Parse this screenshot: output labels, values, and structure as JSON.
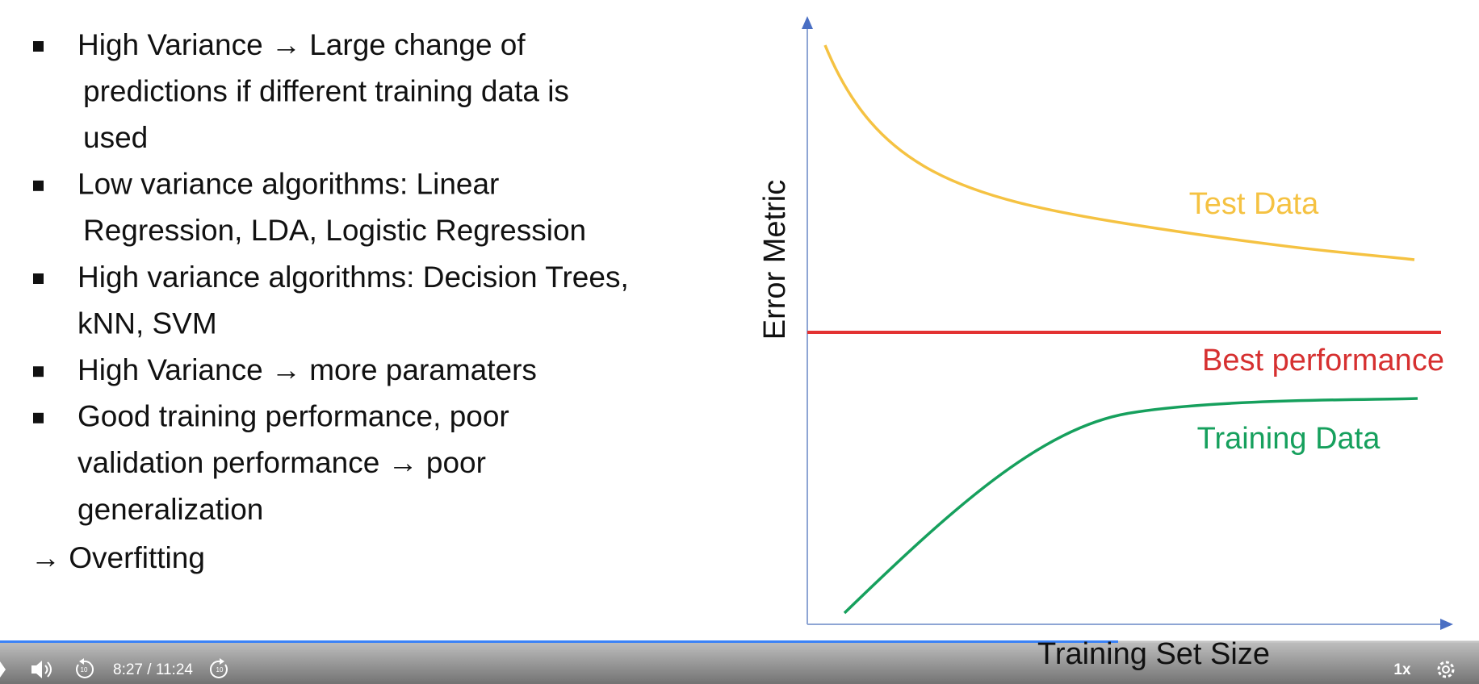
{
  "slide": {
    "bullets": [
      {
        "lines": [
          "High Variance → Large change of",
          "predictions if different training data is",
          "used"
        ]
      },
      {
        "lines": [
          "Low variance algorithms: Linear",
          "Regression, LDA, Logistic Regression"
        ]
      },
      {
        "lines": [
          "High variance algorithms: Decision Trees,",
          "kNN, SVM"
        ]
      },
      {
        "lines": [
          "High Variance → more paramaters"
        ]
      },
      {
        "lines": [
          "Good training performance, poor",
          "validation performance → poor",
          "generalization"
        ]
      }
    ],
    "conclusion": "→ Overfitting"
  },
  "diagram": {
    "y_axis_label": "Error Metric",
    "x_axis_label": "Training Set Size",
    "test_label": "Test Data",
    "best_label": "Best performance",
    "training_label": "Training Data"
  },
  "player": {
    "time": "8:27 / 11:24",
    "speed": "1x"
  }
}
